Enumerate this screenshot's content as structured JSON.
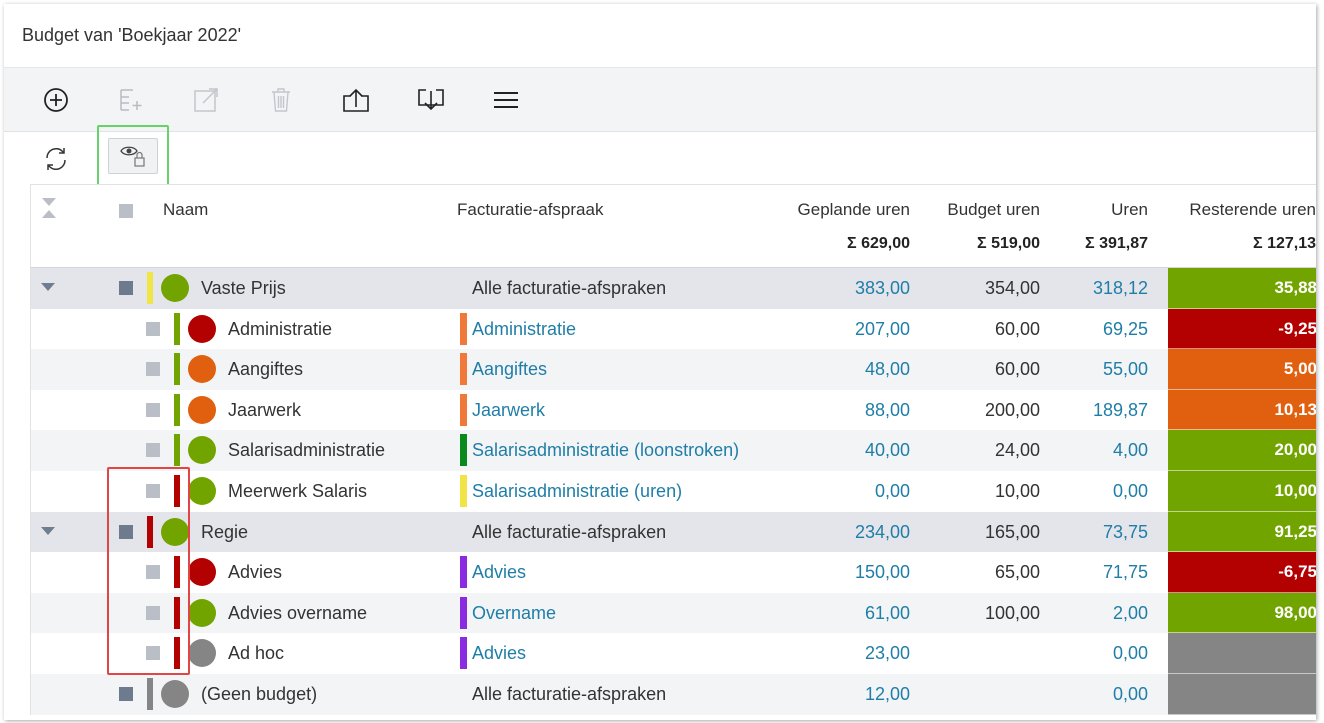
{
  "window": {
    "title": "Budget van 'Boekjaar 2022'"
  },
  "toolbar": {
    "buttons": [
      {
        "icon": "add-circle-icon",
        "enabled": true
      },
      {
        "icon": "add-list-icon",
        "enabled": false
      },
      {
        "icon": "open-external-icon",
        "enabled": false
      },
      {
        "icon": "trash-icon",
        "enabled": false
      },
      {
        "icon": "upload-icon",
        "enabled": true
      },
      {
        "icon": "download-icon",
        "enabled": true
      },
      {
        "icon": "menu-icon",
        "enabled": true
      }
    ]
  },
  "columns": {
    "naam": "Naam",
    "facturatie": "Facturatie-afspraak",
    "geplande": "Geplande uren",
    "budget": "Budget uren",
    "uren": "Uren",
    "resterende": "Resterende uren"
  },
  "sums": {
    "geplande": "Σ 629,00",
    "budget": "Σ 519,00",
    "uren": "Σ 391,87",
    "resterende": "Σ 127,13"
  },
  "rows": [
    {
      "type": "group",
      "name": "Vaste Prijs",
      "bar": "#f0e446",
      "dot": "#72a400",
      "fact": "Alle facturatie-afspraken",
      "fbar": "",
      "gepl": "383,00",
      "budg": "354,00",
      "uren": "318,12",
      "rest": "35,88",
      "restColor": "#72a400"
    },
    {
      "type": "child",
      "name": "Administratie",
      "bar": "#72a400",
      "dot": "#b30000",
      "fact": "Administratie",
      "fbar": "#f07838",
      "gepl": "207,00",
      "budg": "60,00",
      "uren": "69,25",
      "rest": "-9,25",
      "restColor": "#b30000"
    },
    {
      "type": "child",
      "name": "Aangiftes",
      "bar": "#72a400",
      "dot": "#e06010",
      "fact": "Aangiftes",
      "fbar": "#f07838",
      "gepl": "48,00",
      "budg": "60,00",
      "uren": "55,00",
      "rest": "5,00",
      "restColor": "#e06010"
    },
    {
      "type": "child",
      "name": "Jaarwerk",
      "bar": "#72a400",
      "dot": "#e06010",
      "fact": "Jaarwerk",
      "fbar": "#f07838",
      "gepl": "88,00",
      "budg": "200,00",
      "uren": "189,87",
      "rest": "10,13",
      "restColor": "#e06010"
    },
    {
      "type": "child",
      "name": "Salarisadministratie",
      "bar": "#72a400",
      "dot": "#72a400",
      "fact": "Salarisadministratie (loonstroken)",
      "fbar": "#0a8a1e",
      "gepl": "40,00",
      "budg": "24,00",
      "uren": "4,00",
      "rest": "20,00",
      "restColor": "#72a400"
    },
    {
      "type": "child",
      "name": "Meerwerk Salaris",
      "bar": "#b30000",
      "dot": "#72a400",
      "fact": "Salarisadministratie (uren)",
      "fbar": "#f0e446",
      "gepl": "0,00",
      "budg": "10,00",
      "uren": "0,00",
      "rest": "10,00",
      "restColor": "#72a400"
    },
    {
      "type": "group",
      "name": "Regie",
      "bar": "#b30000",
      "dot": "#72a400",
      "fact": "Alle facturatie-afspraken",
      "fbar": "",
      "gepl": "234,00",
      "budg": "165,00",
      "uren": "73,75",
      "rest": "91,25",
      "restColor": "#72a400"
    },
    {
      "type": "child",
      "name": "Advies",
      "bar": "#b30000",
      "dot": "#b30000",
      "fact": "Advies",
      "fbar": "#8a2be2",
      "gepl": "150,00",
      "budg": "65,00",
      "uren": "71,75",
      "rest": "-6,75",
      "restColor": "#b30000"
    },
    {
      "type": "child",
      "name": "Advies overname",
      "bar": "#b30000",
      "dot": "#72a400",
      "fact": "Overname",
      "fbar": "#8a2be2",
      "gepl": "61,00",
      "budg": "100,00",
      "uren": "2,00",
      "rest": "98,00",
      "restColor": "#72a400"
    },
    {
      "type": "child",
      "name": "Ad hoc",
      "bar": "#b30000",
      "dot": "#858585",
      "fact": "Advies",
      "fbar": "#8a2be2",
      "gepl": "23,00",
      "budg": "",
      "uren": "0,00",
      "rest": "",
      "restColor": "#858585"
    },
    {
      "type": "nogroup",
      "name": "(Geen budget)",
      "bar": "#858585",
      "dot": "#858585",
      "fact": "Alle facturatie-afspraken",
      "fbar": "",
      "gepl": "12,00",
      "budg": "",
      "uren": "0,00",
      "rest": "",
      "restColor": "#858585"
    }
  ]
}
